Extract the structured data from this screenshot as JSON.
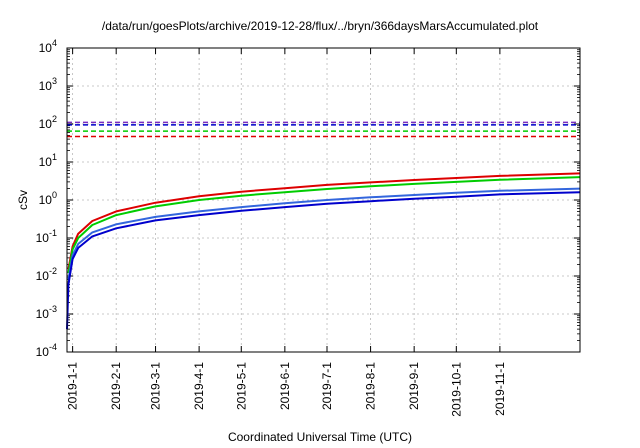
{
  "chart_data": {
    "type": "line",
    "title": "/data/run/goesPlots/archive/2019-12-28/flux/../bryn/366daysMarsAccumulated.plot",
    "xlabel": "Coordinated Universal Time (UTC)",
    "ylabel": "cSv",
    "yscale": "log",
    "ylim": [
      0.0001,
      10000
    ],
    "xlim": [
      "2018-12-28",
      "2019-12-28"
    ],
    "grid": true,
    "x_ticks": [
      "2019-1-1",
      "2019-2-1",
      "2019-3-1",
      "2019-4-1",
      "2019-5-1",
      "2019-6-1",
      "2019-7-1",
      "2019-8-1",
      "2019-9-1",
      "2019-10-1",
      "2019-11-1"
    ],
    "y_ticks": [
      {
        "value": 0.0001,
        "label": "10",
        "exp": "-4"
      },
      {
        "value": 0.001,
        "label": "10",
        "exp": "-3"
      },
      {
        "value": 0.01,
        "label": "10",
        "exp": "-2"
      },
      {
        "value": 0.1,
        "label": "10",
        "exp": "-1"
      },
      {
        "value": 1,
        "label": "10",
        "exp": "0"
      },
      {
        "value": 10,
        "label": "10",
        "exp": "1"
      },
      {
        "value": 100,
        "label": "10",
        "exp": "2"
      },
      {
        "value": 1000,
        "label": "10",
        "exp": "3"
      },
      {
        "value": 10000,
        "label": "10",
        "exp": "4"
      }
    ],
    "series": [
      {
        "color": "#dd0000",
        "values": [
          [
            "2018-12-29",
            0.015
          ],
          [
            "2019-1-1",
            0.06
          ],
          [
            "2019-1-5",
            0.13
          ],
          [
            "2019-1-15",
            0.28
          ],
          [
            "2019-2-1",
            0.5
          ],
          [
            "2019-3-1",
            0.85
          ],
          [
            "2019-4-1",
            1.25
          ],
          [
            "2019-5-1",
            1.65
          ],
          [
            "2019-6-1",
            2.05
          ],
          [
            "2019-7-1",
            2.5
          ],
          [
            "2019-8-1",
            2.9
          ],
          [
            "2019-9-1",
            3.35
          ],
          [
            "2019-10-1",
            3.8
          ],
          [
            "2019-11-1",
            4.3
          ],
          [
            "2019-12-28",
            5.0
          ]
        ]
      },
      {
        "color": "#00cc00",
        "values": [
          [
            "2018-12-29",
            0.012
          ],
          [
            "2019-1-1",
            0.05
          ],
          [
            "2019-1-5",
            0.1
          ],
          [
            "2019-1-15",
            0.22
          ],
          [
            "2019-2-1",
            0.4
          ],
          [
            "2019-3-1",
            0.68
          ],
          [
            "2019-4-1",
            1.0
          ],
          [
            "2019-5-1",
            1.3
          ],
          [
            "2019-6-1",
            1.6
          ],
          [
            "2019-7-1",
            1.95
          ],
          [
            "2019-8-1",
            2.3
          ],
          [
            "2019-9-1",
            2.65
          ],
          [
            "2019-10-1",
            3.0
          ],
          [
            "2019-11-1",
            3.4
          ],
          [
            "2019-12-28",
            4.0
          ]
        ]
      },
      {
        "color": "#3366dd",
        "values": [
          [
            "2018-12-29",
            0.008
          ],
          [
            "2019-1-1",
            0.035
          ],
          [
            "2019-1-5",
            0.07
          ],
          [
            "2019-1-15",
            0.14
          ],
          [
            "2019-2-1",
            0.23
          ],
          [
            "2019-3-1",
            0.36
          ],
          [
            "2019-4-1",
            0.5
          ],
          [
            "2019-5-1",
            0.65
          ],
          [
            "2019-6-1",
            0.82
          ],
          [
            "2019-7-1",
            1.0
          ],
          [
            "2019-8-1",
            1.18
          ],
          [
            "2019-9-1",
            1.35
          ],
          [
            "2019-10-1",
            1.55
          ],
          [
            "2019-11-1",
            1.75
          ],
          [
            "2019-12-28",
            2.0
          ]
        ]
      },
      {
        "color": "#0000cc",
        "values": [
          [
            "2018-12-28",
            0.0004
          ],
          [
            "2018-12-29",
            0.006
          ],
          [
            "2019-1-1",
            0.028
          ],
          [
            "2019-1-5",
            0.055
          ],
          [
            "2019-1-15",
            0.11
          ],
          [
            "2019-2-1",
            0.18
          ],
          [
            "2019-3-1",
            0.29
          ],
          [
            "2019-4-1",
            0.4
          ],
          [
            "2019-5-1",
            0.52
          ],
          [
            "2019-6-1",
            0.65
          ],
          [
            "2019-7-1",
            0.8
          ],
          [
            "2019-8-1",
            0.93
          ],
          [
            "2019-9-1",
            1.08
          ],
          [
            "2019-10-1",
            1.22
          ],
          [
            "2019-11-1",
            1.4
          ],
          [
            "2019-12-28",
            1.6
          ]
        ]
      }
    ],
    "horizontal_lines": [
      {
        "value": 110,
        "color": "#7b2cbf",
        "style": "dashed"
      },
      {
        "value": 95,
        "color": "#0000cc",
        "style": "dashed"
      },
      {
        "value": 65,
        "color": "#00cc00",
        "style": "dashed"
      },
      {
        "value": 47,
        "color": "#dd0000",
        "style": "dashed"
      }
    ]
  }
}
